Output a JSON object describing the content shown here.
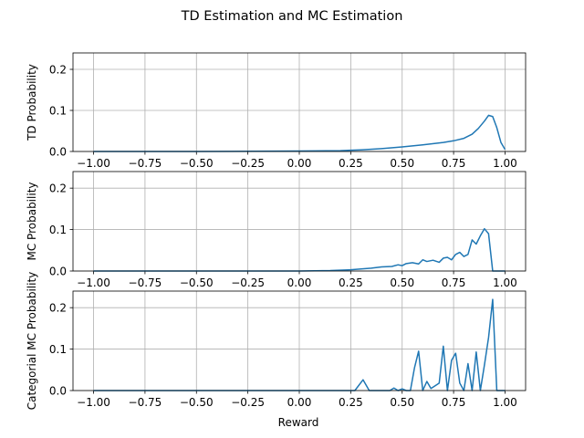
{
  "chart_data": {
    "type": "line",
    "title": "TD Estimation and MC Estimation",
    "xlabel": "Reward",
    "grid": true,
    "line_color": "#1f77b4",
    "panels": [
      {
        "ylabel": "TD Probability",
        "xlim": [
          -1.1,
          1.1
        ],
        "ylim": [
          0,
          0.24
        ],
        "xticks": [
          "-1.00",
          "-0.75",
          "-0.50",
          "-0.25",
          "0.00",
          "0.25",
          "0.50",
          "0.75",
          "1.00"
        ],
        "yticks": [
          "0.0",
          "0.1",
          "0.2"
        ],
        "x": [
          -1.0,
          -0.5,
          0.0,
          0.2,
          0.3,
          0.4,
          0.5,
          0.6,
          0.7,
          0.75,
          0.8,
          0.84,
          0.87,
          0.9,
          0.92,
          0.94,
          0.96,
          0.98,
          1.0
        ],
        "values": [
          0.0,
          0.0,
          0.001,
          0.002,
          0.004,
          0.007,
          0.011,
          0.016,
          0.022,
          0.026,
          0.032,
          0.042,
          0.056,
          0.074,
          0.088,
          0.085,
          0.058,
          0.022,
          0.005
        ]
      },
      {
        "ylabel": "MC Probability",
        "xlim": [
          -1.1,
          1.1
        ],
        "ylim": [
          0,
          0.24
        ],
        "xticks": [
          "-1.00",
          "-0.75",
          "-0.50",
          "-0.25",
          "0.00",
          "0.25",
          "0.50",
          "0.75",
          "1.00"
        ],
        "yticks": [
          "0.0",
          "0.1",
          "0.2"
        ],
        "x": [
          -1.0,
          -0.5,
          0.0,
          0.15,
          0.25,
          0.3,
          0.35,
          0.4,
          0.45,
          0.48,
          0.5,
          0.52,
          0.55,
          0.58,
          0.6,
          0.62,
          0.65,
          0.68,
          0.7,
          0.72,
          0.74,
          0.76,
          0.78,
          0.8,
          0.82,
          0.84,
          0.86,
          0.88,
          0.9,
          0.92,
          0.94,
          0.96,
          1.0
        ],
        "values": [
          0.0,
          0.0,
          0.0,
          0.001,
          0.003,
          0.005,
          0.007,
          0.01,
          0.011,
          0.015,
          0.013,
          0.018,
          0.02,
          0.017,
          0.027,
          0.023,
          0.026,
          0.021,
          0.031,
          0.033,
          0.027,
          0.04,
          0.045,
          0.035,
          0.04,
          0.075,
          0.065,
          0.085,
          0.102,
          0.09,
          0.0,
          0.0,
          0.0
        ]
      },
      {
        "ylabel": "Categorial MC Probability",
        "xlim": [
          -1.1,
          1.1
        ],
        "ylim": [
          0,
          0.24
        ],
        "xticks": [
          "-1.00",
          "-0.75",
          "-0.50",
          "-0.25",
          "0.00",
          "0.25",
          "0.50",
          "0.75",
          "1.00"
        ],
        "yticks": [
          "0.0",
          "0.1",
          "0.2"
        ],
        "x": [
          -1.0,
          0.27,
          0.31,
          0.34,
          0.44,
          0.46,
          0.48,
          0.5,
          0.52,
          0.54,
          0.56,
          0.58,
          0.6,
          0.62,
          0.64,
          0.68,
          0.7,
          0.72,
          0.74,
          0.76,
          0.78,
          0.8,
          0.82,
          0.84,
          0.86,
          0.88,
          0.9,
          0.92,
          0.94,
          0.96,
          1.0
        ],
        "values": [
          0.0,
          0.0,
          0.026,
          0.0,
          0.0,
          0.006,
          0.0,
          0.004,
          0.0,
          0.0,
          0.055,
          0.095,
          0.0,
          0.022,
          0.005,
          0.018,
          0.107,
          0.0,
          0.073,
          0.09,
          0.018,
          0.0,
          0.065,
          0.0,
          0.093,
          0.0,
          0.062,
          0.128,
          0.22,
          0.0,
          0.0
        ]
      }
    ]
  }
}
